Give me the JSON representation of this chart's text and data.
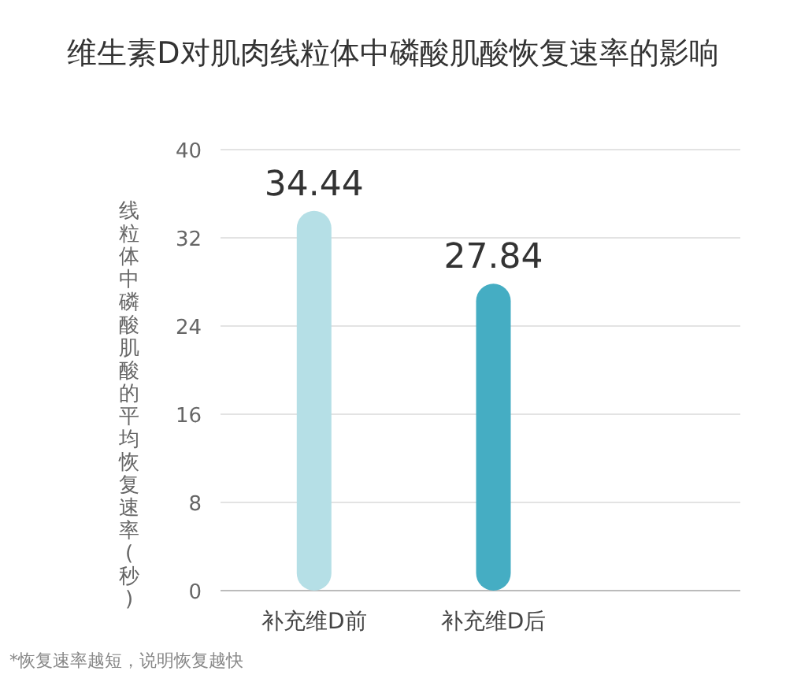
{
  "chart_data": {
    "type": "bar",
    "title": "维生素D对肌肉线粒体中磷酸肌酸恢复速率的影响",
    "ylabel": "线粒体中磷酸肌酸的平均恢复速率(秒)",
    "categories": [
      "补充维D前",
      "补充维D后"
    ],
    "values": [
      34.44,
      27.84
    ],
    "colors": [
      "#b5dfe6",
      "#45adc3"
    ],
    "ylim": [
      0,
      40
    ],
    "yticks": [
      0,
      8,
      16,
      24,
      32,
      40
    ],
    "grid": "y",
    "data_labels": true,
    "annotations": [
      "*恢复速率越短，说明恢复越快"
    ]
  }
}
